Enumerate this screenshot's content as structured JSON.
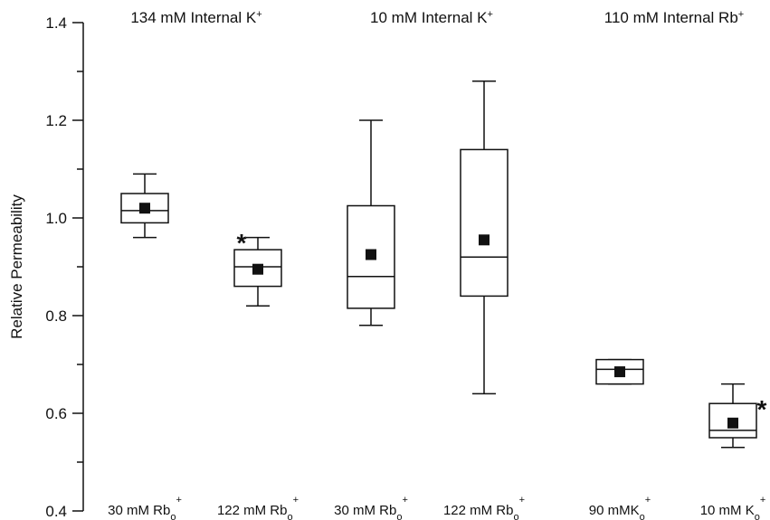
{
  "chart_data": {
    "type": "box",
    "ylabel": "Relative Permeability",
    "ylim": [
      0.4,
      1.4
    ],
    "yticks": [
      "0.4",
      "0.6",
      "0.8",
      "1.0",
      "1.2",
      "1.4"
    ],
    "groups": [
      {
        "label": "134 mM Internal K",
        "sup": "+"
      },
      {
        "label": "10 mM Internal K",
        "sup": "+"
      },
      {
        "label": "110 mM Internal Rb",
        "sup": "+"
      }
    ],
    "categories": [
      {
        "label": "30 mM Rb",
        "sub": "o",
        "sup": "+",
        "group": 0,
        "whisker_low": 0.96,
        "q1": 0.99,
        "median": 1.015,
        "q3": 1.05,
        "whisker_high": 1.09,
        "mean": 1.02,
        "significant": false
      },
      {
        "label": "122 mM Rb",
        "sub": "o",
        "sup": "+",
        "group": 0,
        "whisker_low": 0.82,
        "q1": 0.86,
        "median": 0.9,
        "q3": 0.935,
        "whisker_high": 0.96,
        "mean": 0.895,
        "significant": true
      },
      {
        "label": "30 mM Rb",
        "sub": "o",
        "sup": "+",
        "group": 1,
        "whisker_low": 0.78,
        "q1": 0.815,
        "median": 0.88,
        "q3": 1.025,
        "whisker_high": 1.2,
        "mean": 0.925,
        "significant": false
      },
      {
        "label": "122 mM Rb",
        "sub": "o",
        "sup": "+",
        "group": 1,
        "whisker_low": 0.64,
        "q1": 0.84,
        "median": 0.92,
        "q3": 1.14,
        "whisker_high": 1.28,
        "mean": 0.955,
        "significant": false
      },
      {
        "label": "90 mMK",
        "sub": "o",
        "sup": "+",
        "group": 2,
        "whisker_low": 0.66,
        "q1": 0.66,
        "median": 0.69,
        "q3": 0.71,
        "whisker_high": 0.71,
        "mean": 0.685,
        "significant": false
      },
      {
        "label": "10 mM K",
        "sub": "o",
        "sup": "+",
        "group": 2,
        "whisker_low": 0.53,
        "q1": 0.55,
        "median": 0.565,
        "q3": 0.62,
        "whisker_high": 0.66,
        "mean": 0.58,
        "significant": true
      }
    ],
    "significance_marker": "*",
    "grid": false,
    "colors": {
      "box_stroke": "#111111",
      "mean_marker": "#111111"
    }
  }
}
